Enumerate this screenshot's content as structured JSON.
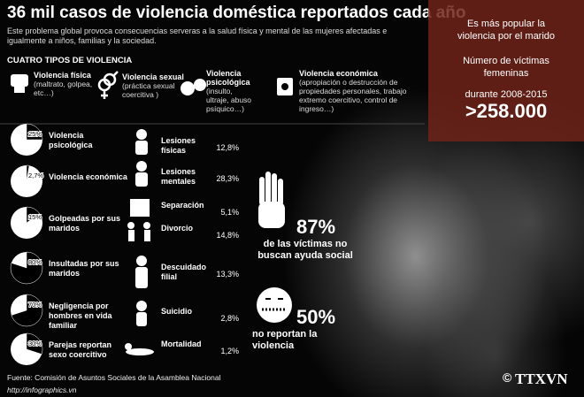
{
  "header": {
    "title": "36 mil casos de violencia doméstica reportados cada año",
    "subtitle": "Este problema global provoca consecuencias serveras a la salud física y mental de las mujeres afectadas e igualmente a niños, familias y la  sociedad."
  },
  "types": {
    "heading": "CUATRO TIPOS DE VIOLENCIA",
    "items": [
      {
        "name": "Violencia física",
        "desc": "(maltrato, golpea, etc…)"
      },
      {
        "name": "Violencia sexual",
        "desc": "(práctica sexual coercitiva )"
      },
      {
        "name": "Violencia psicológica",
        "desc": "(insulto, ultraje, abuso psíquico…)"
      },
      {
        "name": "Violencia económica",
        "desc": "(apropiación o destrucción de propiedades personales, trabajo extremo coercitivo, control de ingreso…)"
      }
    ]
  },
  "pies": [
    {
      "value": 25,
      "label": "25%",
      "text": "Violencia psicológica"
    },
    {
      "value": 2.7,
      "label": "2,7%",
      "text": "Violencia económica"
    },
    {
      "value": 15,
      "label": "15%",
      "text": "Golpeadas por sus maridos"
    },
    {
      "value": 80,
      "label": "80%",
      "text": "Insultadas por sus maridos"
    },
    {
      "value": 70,
      "label": "70%",
      "text": "Negligencia por hombres en vida familiar"
    },
    {
      "value": 30,
      "label": "30%",
      "text": "Parejas reportan sexo coercitivo"
    }
  ],
  "consequences": [
    {
      "name": "Lesiones físicas",
      "value": "12,8%"
    },
    {
      "name": "Lesiones mentales",
      "value": "28,3%"
    },
    {
      "name": "Separación",
      "value": "5,1%"
    },
    {
      "name": "Divorcio",
      "value": "14,8%"
    },
    {
      "name": "Descuidado filial",
      "value": "13,3%"
    },
    {
      "name": "Suicidio",
      "value": "2,8%"
    },
    {
      "name": "Mortalidad",
      "value": "1,2%"
    }
  ],
  "stats": [
    {
      "value": "87%",
      "text": "de las víctimas no buscan ayuda social"
    },
    {
      "value": "50%",
      "text": "no reportan la violencia"
    }
  ],
  "panel": {
    "line1": "Es más popular la violencia por el marido",
    "line2": "Número de víctimas femeninas",
    "period": "durante 2008-2015",
    "total": ">258.000"
  },
  "footer": {
    "source": "Fuente: Comisión de Asuntos Sociales de la Asamblea Nacional",
    "url": "http://infographics.vn",
    "logo": "TTXVN"
  }
}
